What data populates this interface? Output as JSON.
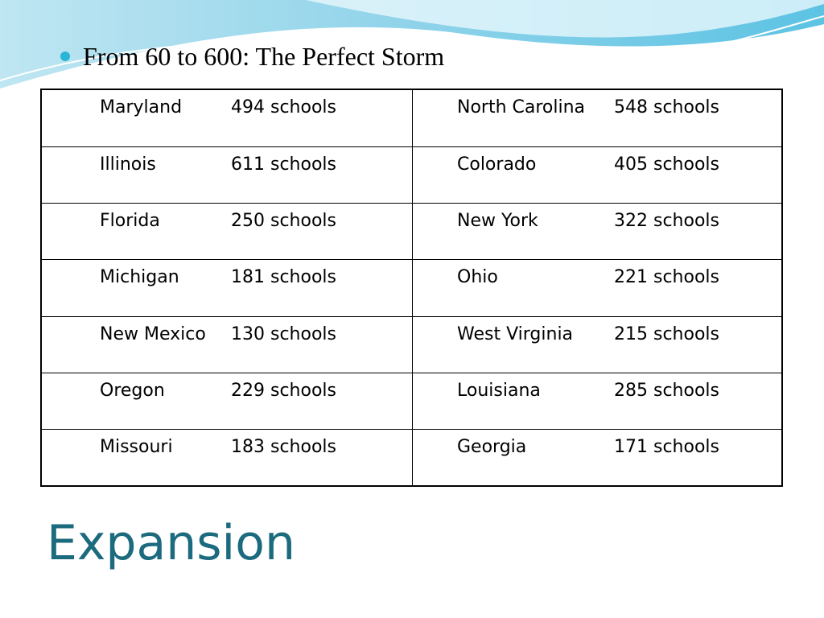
{
  "bullet": "From 60 to 600: The Perfect Storm",
  "table": {
    "rows": [
      [
        {
          "state": "Maryland",
          "count": "494 schools"
        },
        {
          "state": "North Carolina",
          "count": "548 schools"
        }
      ],
      [
        {
          "state": "Illinois",
          "count": "611 schools"
        },
        {
          "state": "Colorado",
          "count": "405 schools"
        }
      ],
      [
        {
          "state": "Florida",
          "count": "250 schools"
        },
        {
          "state": "New York",
          "count": "322 schools"
        }
      ],
      [
        {
          "state": "Michigan",
          "count": "181 schools"
        },
        {
          "state": "Ohio",
          "count": "221 schools"
        }
      ],
      [
        {
          "state": "New Mexico",
          "count": "130 schools"
        },
        {
          "state": "West Virginia",
          "count": "215 schools"
        }
      ],
      [
        {
          "state": "Oregon",
          "count": "229 schools"
        },
        {
          "state": "Louisiana",
          "count": "285 schools"
        }
      ],
      [
        {
          "state": "Missouri",
          "count": "183 schools"
        },
        {
          "state": "Georgia",
          "count": "171 schools"
        }
      ]
    ]
  },
  "title": "Expansion"
}
